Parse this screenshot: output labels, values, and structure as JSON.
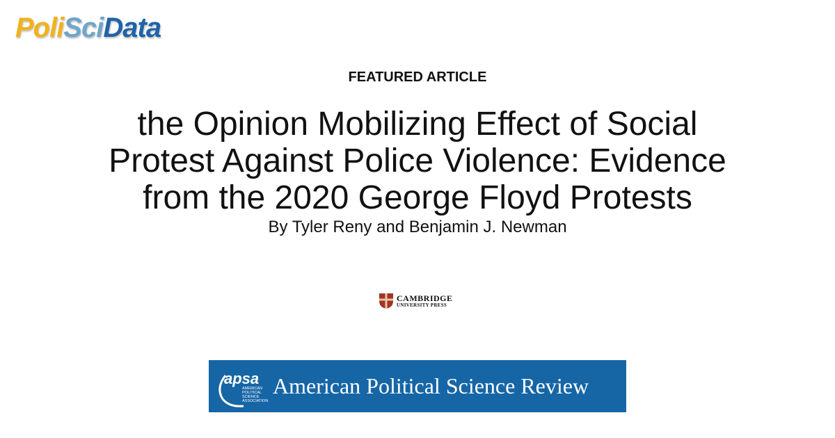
{
  "logo": {
    "parts": [
      "Poli",
      "Sci",
      "Data"
    ]
  },
  "label": "FEATURED ARTICLE",
  "title_lines": [
    "the Opinion Mobilizing Effect of Social",
    "Protest Against Police Violence: Evidence",
    "from the 2020 George Floyd Protests"
  ],
  "authors": "By Tyler Reny and Benjamin J. Newman",
  "publisher": {
    "name": "CAMBRIDGE",
    "subname": "UNIVERSITY PRESS"
  },
  "journal": {
    "badge": "apsa",
    "association": [
      "AMERICAN",
      "POLITICAL",
      "SCIENCE",
      "ASSOCIATION"
    ],
    "name": "American Political Science Review"
  }
}
